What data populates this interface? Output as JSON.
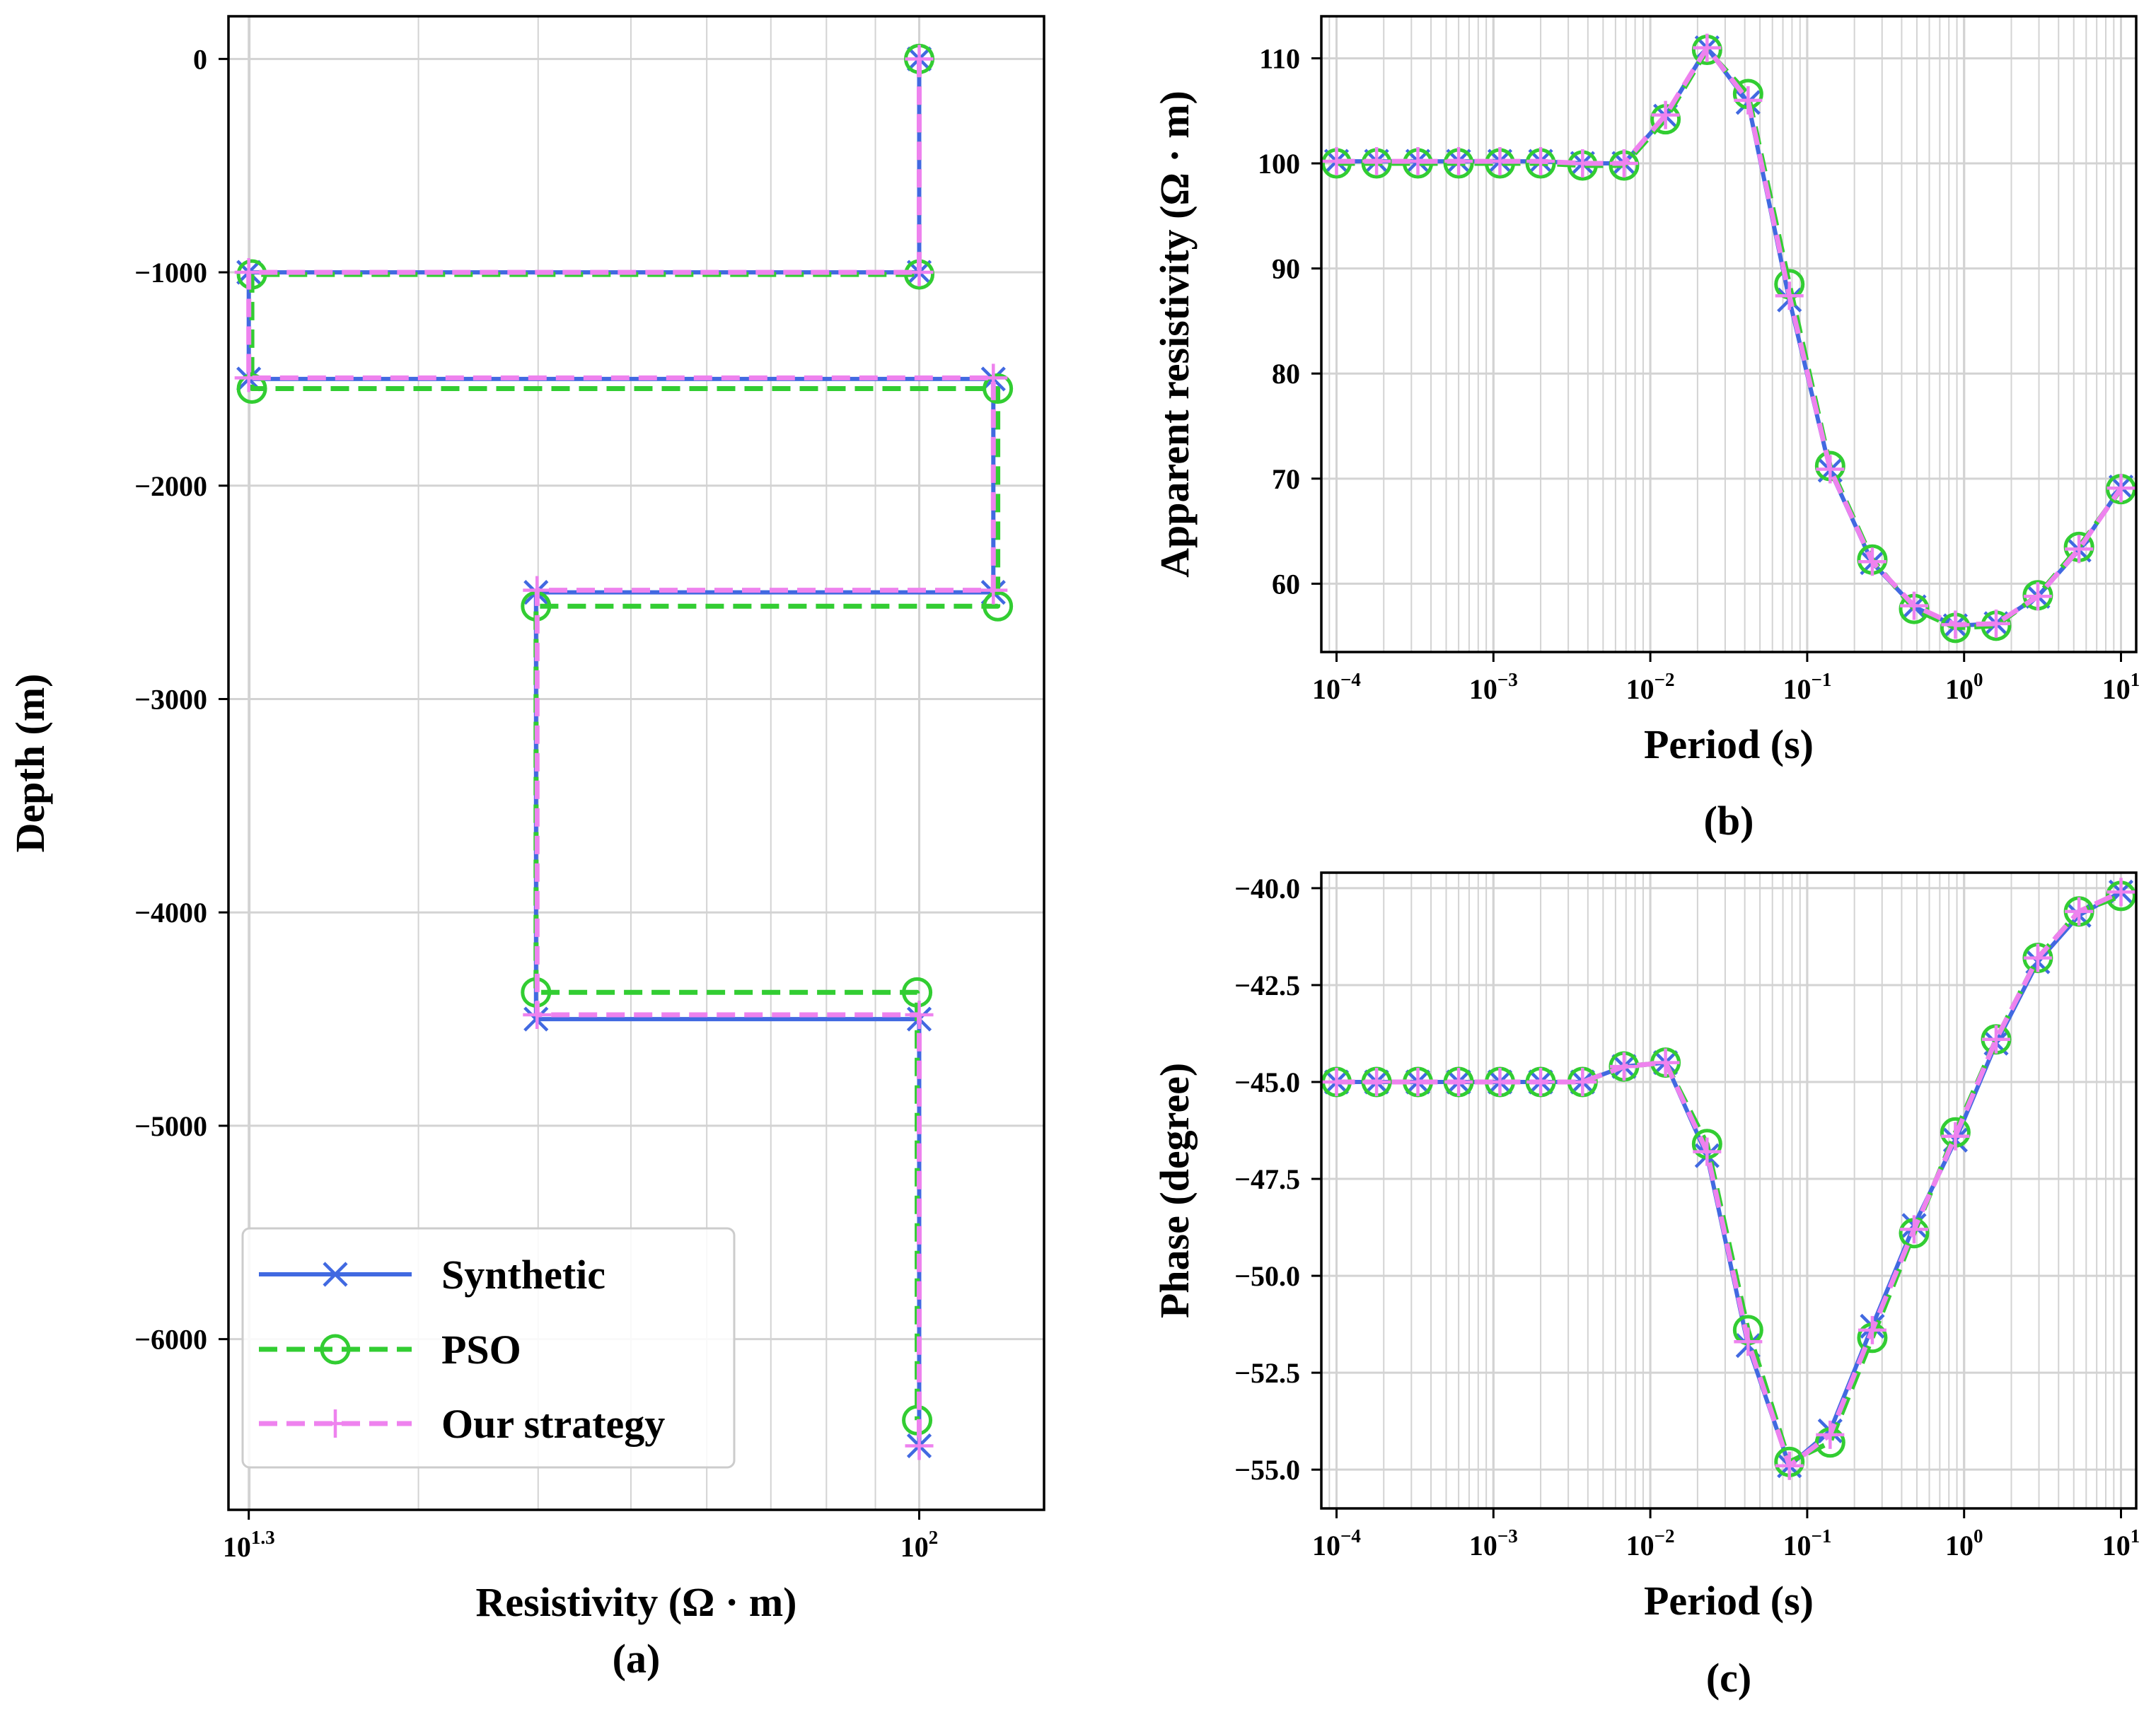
{
  "colors": {
    "synthetic": "#4169e1",
    "pso": "#32cd32",
    "ours": "#ee82ee"
  },
  "legend": {
    "synthetic": "Synthetic",
    "pso": "PSO",
    "ours": "Our strategy"
  },
  "chart_data": [
    {
      "id": "a",
      "type": "line",
      "caption": "(a)",
      "xlabel": "Resistivity (Ω · m)",
      "ylabel": "Depth (m)",
      "xscale": "log",
      "xlim": [
        19.0,
        135.0
      ],
      "ylim": [
        -6800,
        200
      ],
      "xticks": [
        {
          "value": 19.95,
          "base": "10",
          "exp": "1.3"
        },
        {
          "value": 100,
          "base": "10",
          "exp": "2"
        }
      ],
      "yticks": [
        {
          "value": 0,
          "label": "0"
        },
        {
          "value": -1000,
          "label": "−1000"
        },
        {
          "value": -2000,
          "label": "−2000"
        },
        {
          "value": -3000,
          "label": "−3000"
        },
        {
          "value": -4000,
          "label": "−4000"
        },
        {
          "value": -5000,
          "label": "−5000"
        },
        {
          "value": -6000,
          "label": "−6000"
        }
      ],
      "grid": true,
      "legend_position": "lower-left",
      "series": [
        {
          "key": "synthetic",
          "name": "Synthetic",
          "x": [
            100,
            100,
            19.95,
            19.95,
            119.5,
            119.5,
            39.8,
            39.8,
            100,
            100
          ],
          "y": [
            0,
            -1000,
            -1000,
            -1500,
            -1500,
            -2500,
            -2500,
            -4500,
            -4500,
            -6500
          ]
        },
        {
          "key": "pso",
          "name": "PSO",
          "x": [
            100,
            100,
            20.1,
            20.1,
            120.8,
            120.8,
            39.8,
            39.8,
            99.5,
            99.5
          ],
          "y": [
            0,
            -1010,
            -1010,
            -1545,
            -1545,
            -2565,
            -2565,
            -4375,
            -4375,
            -6380
          ]
        },
        {
          "key": "ours",
          "name": "Our strategy",
          "x": [
            100,
            100,
            19.95,
            19.95,
            119.5,
            119.5,
            39.9,
            39.9,
            100,
            100
          ],
          "y": [
            0,
            -1000,
            -1000,
            -1495,
            -1495,
            -2490,
            -2490,
            -4480,
            -4480,
            -6500
          ]
        }
      ]
    },
    {
      "id": "b",
      "type": "line",
      "caption": "(b)",
      "xlabel": "Period (s)",
      "ylabel": "Apparent resistivity (Ω · m)",
      "xscale": "log",
      "xlim": [
        8e-05,
        12.5
      ],
      "ylim": [
        53.5,
        114
      ],
      "xticks": [
        {
          "value": 0.0001,
          "base": "10",
          "exp": "−4"
        },
        {
          "value": 0.001,
          "base": "10",
          "exp": "−3"
        },
        {
          "value": 0.01,
          "base": "10",
          "exp": "−2"
        },
        {
          "value": 0.1,
          "base": "10",
          "exp": "−1"
        },
        {
          "value": 1,
          "base": "10",
          "exp": "0"
        },
        {
          "value": 10,
          "base": "10",
          "exp": "1"
        }
      ],
      "yticks": [
        {
          "value": 60,
          "label": "60"
        },
        {
          "value": 70,
          "label": "70"
        },
        {
          "value": 80,
          "label": "80"
        },
        {
          "value": 90,
          "label": "90"
        },
        {
          "value": 100,
          "label": "100"
        },
        {
          "value": 110,
          "label": "110"
        }
      ],
      "grid": true,
      "x": [
        0.0001,
        0.00018,
        0.00033,
        0.0006,
        0.0011,
        0.002,
        0.0037,
        0.0068,
        0.0125,
        0.023,
        0.042,
        0.077,
        0.14,
        0.26,
        0.48,
        0.88,
        1.6,
        2.95,
        5.4,
        10
      ],
      "series": [
        {
          "key": "synthetic",
          "name": "Synthetic",
          "y": [
            100.2,
            100.2,
            100.2,
            100.2,
            100.2,
            100.2,
            100.0,
            100.0,
            104.5,
            111.0,
            105.8,
            87.0,
            70.8,
            62.0,
            57.8,
            56.0,
            56.2,
            58.8,
            63.2,
            69.2
          ]
        },
        {
          "key": "pso",
          "name": "PSO",
          "y": [
            100.0,
            100.0,
            100.0,
            100.0,
            100.0,
            100.0,
            99.8,
            99.8,
            104.2,
            110.8,
            106.6,
            88.5,
            71.2,
            62.3,
            57.6,
            55.8,
            56.0,
            58.9,
            63.5,
            69.0
          ]
        },
        {
          "key": "ours",
          "name": "Our strategy",
          "y": [
            100.2,
            100.2,
            100.2,
            100.2,
            100.2,
            100.2,
            100.0,
            100.0,
            104.6,
            111.0,
            106.0,
            87.4,
            70.9,
            62.1,
            57.9,
            56.1,
            56.2,
            58.8,
            63.3,
            69.1
          ]
        }
      ]
    },
    {
      "id": "c",
      "type": "line",
      "caption": "(c)",
      "xlabel": "Period (s)",
      "ylabel": "Phase (degree)",
      "xscale": "log",
      "xlim": [
        8e-05,
        12.5
      ],
      "ylim": [
        -56.0,
        -39.6
      ],
      "xticks": [
        {
          "value": 0.0001,
          "base": "10",
          "exp": "−4"
        },
        {
          "value": 0.001,
          "base": "10",
          "exp": "−3"
        },
        {
          "value": 0.01,
          "base": "10",
          "exp": "−2"
        },
        {
          "value": 0.1,
          "base": "10",
          "exp": "−1"
        },
        {
          "value": 1,
          "base": "10",
          "exp": "0"
        },
        {
          "value": 10,
          "base": "10",
          "exp": "1"
        }
      ],
      "yticks": [
        {
          "value": -55.0,
          "label": "−55.0"
        },
        {
          "value": -52.5,
          "label": "−52.5"
        },
        {
          "value": -50.0,
          "label": "−50.0"
        },
        {
          "value": -47.5,
          "label": "−47.5"
        },
        {
          "value": -45.0,
          "label": "−45.0"
        },
        {
          "value": -42.5,
          "label": "−42.5"
        },
        {
          "value": -40.0,
          "label": "−40.0"
        }
      ],
      "grid": true,
      "x": [
        0.0001,
        0.00018,
        0.00033,
        0.0006,
        0.0011,
        0.002,
        0.0037,
        0.0068,
        0.0125,
        0.023,
        0.042,
        0.077,
        0.14,
        0.26,
        0.48,
        0.88,
        1.6,
        2.95,
        5.4,
        10
      ],
      "series": [
        {
          "key": "synthetic",
          "name": "Synthetic",
          "y": [
            -45.0,
            -45.0,
            -45.0,
            -45.0,
            -45.0,
            -45.0,
            -45.0,
            -44.6,
            -44.5,
            -46.9,
            -51.8,
            -54.9,
            -54.0,
            -51.3,
            -48.7,
            -46.5,
            -44.0,
            -41.9,
            -40.7,
            -40.1
          ]
        },
        {
          "key": "pso",
          "name": "PSO",
          "y": [
            -45.0,
            -45.0,
            -45.0,
            -45.0,
            -45.0,
            -45.0,
            -45.0,
            -44.6,
            -44.5,
            -46.6,
            -51.4,
            -54.8,
            -54.3,
            -51.6,
            -48.9,
            -46.3,
            -43.9,
            -41.8,
            -40.6,
            -40.2
          ]
        },
        {
          "key": "ours",
          "name": "Our strategy",
          "y": [
            -45.0,
            -45.0,
            -45.0,
            -45.0,
            -45.0,
            -45.0,
            -45.0,
            -44.6,
            -44.5,
            -46.8,
            -51.7,
            -54.9,
            -54.1,
            -51.4,
            -48.8,
            -46.4,
            -43.9,
            -41.8,
            -40.6,
            -40.1
          ]
        }
      ]
    }
  ]
}
